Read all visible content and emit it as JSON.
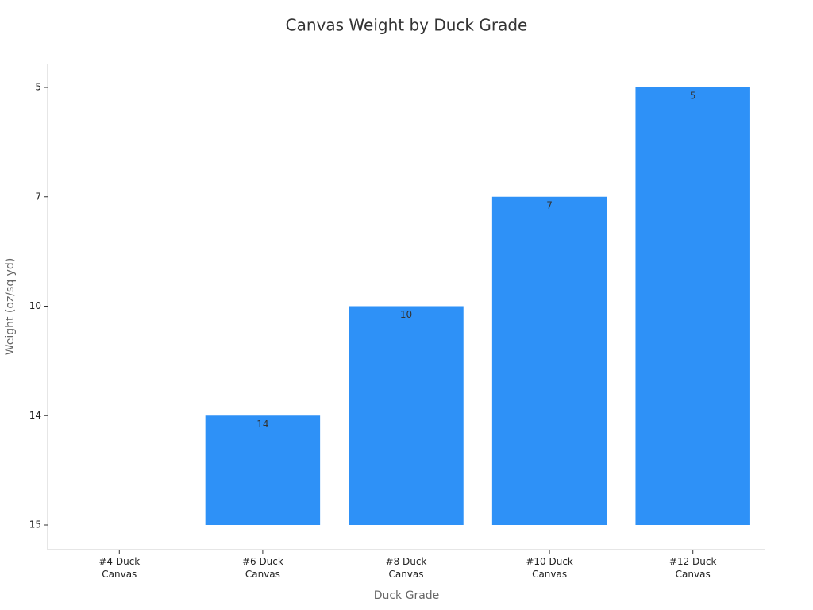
{
  "chart_data": {
    "type": "bar",
    "title": "Canvas Weight by Duck Grade",
    "x_label": "Duck Grade",
    "y_label": "Weight (oz/sq yd)",
    "categories": [
      "#4 Duck Canvas",
      "#6 Duck Canvas",
      "#8 Duck Canvas",
      "#10 Duck Canvas",
      "#12 Duck Canvas"
    ],
    "values": [
      15,
      14,
      10,
      7,
      5
    ],
    "color": "#2e91f7",
    "yscale": "category",
    "ylim": [
      15,
      5
    ],
    "yticks": [
      5,
      7,
      10,
      14,
      15
    ],
    "grid": false
  }
}
